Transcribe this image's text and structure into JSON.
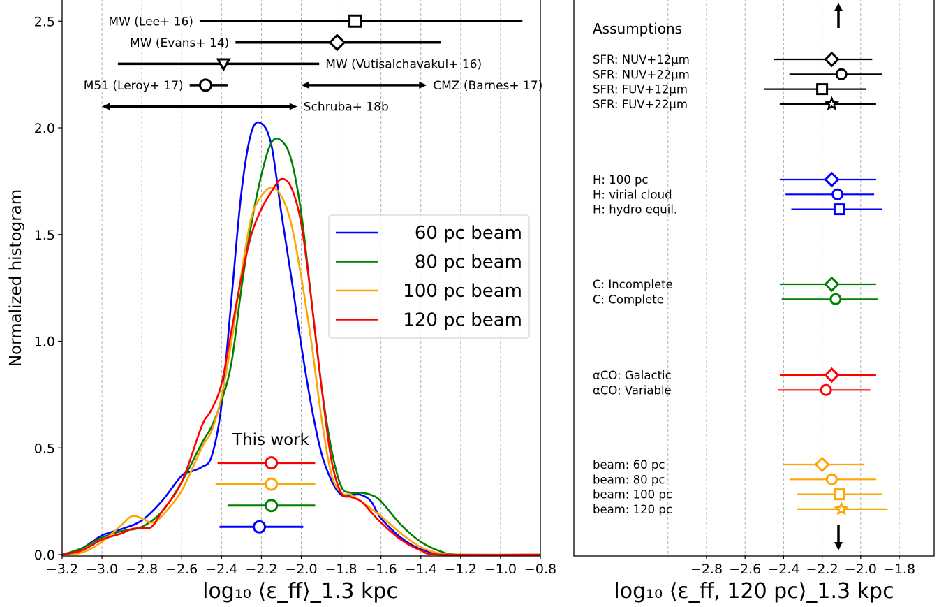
{
  "chart_data": [
    {
      "type": "line",
      "xlabel": "log₁₀ ⟨ε_ff⟩_1.3 kpc",
      "ylabel": "Normalized histogram",
      "xlim": [
        -3.2,
        -0.8
      ],
      "ylim": [
        0.0,
        2.6
      ],
      "grid": "vertical dashed gridlines",
      "xticks": [
        "−3.2",
        "−3.0",
        "−2.8",
        "−2.6",
        "−2.4",
        "−2.2",
        "−2.0",
        "−1.8",
        "−1.6",
        "−1.4",
        "−1.2",
        "−1.0",
        "−0.8"
      ],
      "yticks": [
        "0.0",
        "0.5",
        "1.0",
        "1.5",
        "2.0",
        "2.5"
      ],
      "legend_position": "center-right",
      "series": [
        {
          "name": "60 pc beam",
          "color": "#0000ff",
          "points": [
            [
              -3.2,
              0.0
            ],
            [
              -3.1,
              0.03
            ],
            [
              -3.0,
              0.09
            ],
            [
              -2.9,
              0.12
            ],
            [
              -2.8,
              0.16
            ],
            [
              -2.7,
              0.25
            ],
            [
              -2.6,
              0.37
            ],
            [
              -2.55,
              0.39
            ],
            [
              -2.5,
              0.41
            ],
            [
              -2.45,
              0.46
            ],
            [
              -2.4,
              0.7
            ],
            [
              -2.35,
              1.2
            ],
            [
              -2.3,
              1.7
            ],
            [
              -2.25,
              1.98
            ],
            [
              -2.2,
              2.02
            ],
            [
              -2.15,
              1.92
            ],
            [
              -2.1,
              1.6
            ],
            [
              -2.05,
              1.3
            ],
            [
              -2.0,
              0.98
            ],
            [
              -1.95,
              0.7
            ],
            [
              -1.9,
              0.48
            ],
            [
              -1.85,
              0.35
            ],
            [
              -1.8,
              0.28
            ],
            [
              -1.75,
              0.28
            ],
            [
              -1.7,
              0.28
            ],
            [
              -1.65,
              0.25
            ],
            [
              -1.6,
              0.17
            ],
            [
              -1.5,
              0.08
            ],
            [
              -1.4,
              0.025
            ],
            [
              -1.3,
              0.005
            ],
            [
              -1.2,
              0.0
            ],
            [
              -0.8,
              0.0
            ]
          ]
        },
        {
          "name": "80 pc beam",
          "color": "#008000",
          "points": [
            [
              -3.2,
              0.0
            ],
            [
              -3.1,
              0.03
            ],
            [
              -3.0,
              0.08
            ],
            [
              -2.9,
              0.11
            ],
            [
              -2.8,
              0.13
            ],
            [
              -2.7,
              0.2
            ],
            [
              -2.6,
              0.34
            ],
            [
              -2.5,
              0.52
            ],
            [
              -2.45,
              0.6
            ],
            [
              -2.4,
              0.72
            ],
            [
              -2.35,
              0.9
            ],
            [
              -2.3,
              1.25
            ],
            [
              -2.25,
              1.55
            ],
            [
              -2.2,
              1.78
            ],
            [
              -2.15,
              1.93
            ],
            [
              -2.1,
              1.94
            ],
            [
              -2.05,
              1.85
            ],
            [
              -2.0,
              1.6
            ],
            [
              -1.95,
              1.2
            ],
            [
              -1.9,
              0.8
            ],
            [
              -1.85,
              0.5
            ],
            [
              -1.8,
              0.32
            ],
            [
              -1.75,
              0.29
            ],
            [
              -1.7,
              0.29
            ],
            [
              -1.65,
              0.28
            ],
            [
              -1.6,
              0.25
            ],
            [
              -1.5,
              0.14
            ],
            [
              -1.4,
              0.06
            ],
            [
              -1.3,
              0.015
            ],
            [
              -1.2,
              0.0
            ],
            [
              -0.8,
              0.0
            ]
          ]
        },
        {
          "name": "100 pc beam",
          "color": "#ffa500",
          "points": [
            [
              -3.2,
              0.0
            ],
            [
              -3.1,
              0.01
            ],
            [
              -3.0,
              0.06
            ],
            [
              -2.9,
              0.14
            ],
            [
              -2.85,
              0.18
            ],
            [
              -2.8,
              0.17
            ],
            [
              -2.75,
              0.15
            ],
            [
              -2.7,
              0.18
            ],
            [
              -2.6,
              0.3
            ],
            [
              -2.5,
              0.5
            ],
            [
              -2.45,
              0.58
            ],
            [
              -2.4,
              0.74
            ],
            [
              -2.35,
              1.0
            ],
            [
              -2.3,
              1.32
            ],
            [
              -2.25,
              1.58
            ],
            [
              -2.2,
              1.68
            ],
            [
              -2.15,
              1.72
            ],
            [
              -2.1,
              1.68
            ],
            [
              -2.05,
              1.55
            ],
            [
              -2.0,
              1.3
            ],
            [
              -1.95,
              1.0
            ],
            [
              -1.9,
              0.65
            ],
            [
              -1.85,
              0.38
            ],
            [
              -1.8,
              0.29
            ],
            [
              -1.75,
              0.28
            ],
            [
              -1.7,
              0.25
            ],
            [
              -1.6,
              0.18
            ],
            [
              -1.5,
              0.1
            ],
            [
              -1.4,
              0.035
            ],
            [
              -1.3,
              0.005
            ],
            [
              -1.2,
              0.0
            ],
            [
              -0.8,
              0.0
            ]
          ]
        },
        {
          "name": "120 pc beam",
          "color": "#ff0000",
          "points": [
            [
              -3.2,
              0.0
            ],
            [
              -3.1,
              0.02
            ],
            [
              -3.0,
              0.07
            ],
            [
              -2.9,
              0.1
            ],
            [
              -2.85,
              0.12
            ],
            [
              -2.8,
              0.125
            ],
            [
              -2.75,
              0.13
            ],
            [
              -2.7,
              0.2
            ],
            [
              -2.6,
              0.34
            ],
            [
              -2.5,
              0.6
            ],
            [
              -2.45,
              0.68
            ],
            [
              -2.4,
              0.8
            ],
            [
              -2.35,
              1.05
            ],
            [
              -2.3,
              1.3
            ],
            [
              -2.25,
              1.5
            ],
            [
              -2.2,
              1.62
            ],
            [
              -2.15,
              1.7
            ],
            [
              -2.1,
              1.76
            ],
            [
              -2.05,
              1.72
            ],
            [
              -2.0,
              1.55
            ],
            [
              -1.95,
              1.2
            ],
            [
              -1.9,
              0.8
            ],
            [
              -1.85,
              0.45
            ],
            [
              -1.8,
              0.29
            ],
            [
              -1.75,
              0.27
            ],
            [
              -1.7,
              0.25
            ],
            [
              -1.65,
              0.2
            ],
            [
              -1.6,
              0.15
            ],
            [
              -1.5,
              0.07
            ],
            [
              -1.4,
              0.02
            ],
            [
              -1.3,
              0.0
            ],
            [
              -0.8,
              0.0
            ]
          ]
        }
      ],
      "this_work": {
        "label": "This work",
        "rows": [
          {
            "color": "#ff0000",
            "y": 0.43,
            "center": -2.15,
            "lo": -2.42,
            "hi": -1.93
          },
          {
            "color": "#ffa500",
            "y": 0.33,
            "center": -2.15,
            "lo": -2.43,
            "hi": -1.93
          },
          {
            "color": "#008000",
            "y": 0.23,
            "center": -2.15,
            "lo": -2.37,
            "hi": -1.93
          },
          {
            "color": "#0000ff",
            "y": 0.13,
            "center": -2.21,
            "lo": -2.41,
            "hi": -1.99
          }
        ]
      },
      "literature": [
        {
          "label": "MW (Lee+ 16)",
          "y": 2.5,
          "center": -1.73,
          "lo": -2.51,
          "hi": -0.89,
          "marker": "square",
          "label_side": "left"
        },
        {
          "label": "MW (Evans+ 14)",
          "y": 2.4,
          "center": -1.82,
          "lo": -2.33,
          "hi": -1.3,
          "marker": "diamond",
          "label_side": "left"
        },
        {
          "label": "MW (Vutisalchavakul+ 16)",
          "y": 2.3,
          "center": -2.39,
          "lo": -2.92,
          "hi": -1.91,
          "marker": "triangle-down",
          "label_side": "right"
        },
        {
          "label": "M51 (Leroy+ 17)",
          "y": 2.2,
          "center": -2.48,
          "lo": -2.56,
          "hi": -2.37,
          "marker": "circle",
          "label_side": "left"
        },
        {
          "label": "CMZ (Barnes+ 17)",
          "y": 2.2,
          "lo": -2.0,
          "hi": -1.37,
          "marker": "range",
          "label_side": "right"
        },
        {
          "label": "Schruba+ 18b",
          "y": 2.1,
          "lo": -3.0,
          "hi": -2.02,
          "marker": "range",
          "label_side": "right"
        }
      ]
    },
    {
      "type": "scatter",
      "xlabel": "log₁₀ ⟨ε_ff, 120 pc⟩_1.3 kpc",
      "xlim": [
        -3.2,
        -1.6
      ],
      "xticks": [
        "−2.8",
        "−2.6",
        "−2.4",
        "−2.2",
        "−2.0",
        "−1.8"
      ],
      "grid": "vertical dashed gridlines",
      "title": "Assumptions",
      "groups": [
        {
          "color": "#000000",
          "rows": [
            {
              "label": "SFR: NUV+12μm",
              "center": -2.15,
              "lo": -2.45,
              "hi": -1.94,
              "marker": "diamond"
            },
            {
              "label": "SFR: NUV+22μm",
              "center": -2.1,
              "lo": -2.37,
              "hi": -1.89,
              "marker": "circle"
            },
            {
              "label": "SFR: FUV+12μm",
              "center": -2.2,
              "lo": -2.5,
              "hi": -1.97,
              "marker": "square"
            },
            {
              "label": "SFR: FUV+22μm",
              "center": -2.15,
              "lo": -2.42,
              "hi": -1.92,
              "marker": "star"
            }
          ]
        },
        {
          "color": "#0000ff",
          "rows": [
            {
              "label": "H:  100 pc",
              "center": -2.15,
              "lo": -2.42,
              "hi": -1.92,
              "marker": "diamond"
            },
            {
              "label": "H:  virial cloud",
              "center": -2.12,
              "lo": -2.39,
              "hi": -1.93,
              "marker": "circle"
            },
            {
              "label": "H:  hydro equil.",
              "center": -2.11,
              "lo": -2.36,
              "hi": -1.89,
              "marker": "square"
            }
          ]
        },
        {
          "color": "#008000",
          "rows": [
            {
              "label": "C:  Incomplete",
              "center": -2.15,
              "lo": -2.42,
              "hi": -1.92,
              "marker": "diamond"
            },
            {
              "label": "C:  Complete",
              "center": -2.13,
              "lo": -2.41,
              "hi": -1.91,
              "marker": "circle"
            }
          ]
        },
        {
          "color": "#ff0000",
          "rows": [
            {
              "label": "αCO:  Galactic",
              "center": -2.15,
              "lo": -2.42,
              "hi": -1.92,
              "marker": "diamond"
            },
            {
              "label": "αCO:  Variable",
              "center": -2.18,
              "lo": -2.43,
              "hi": -1.95,
              "marker": "circle"
            }
          ]
        },
        {
          "color": "#ffa500",
          "rows": [
            {
              "label": "beam: 60 pc",
              "center": -2.2,
              "lo": -2.4,
              "hi": -1.98,
              "marker": "diamond"
            },
            {
              "label": "beam: 80 pc",
              "center": -2.15,
              "lo": -2.37,
              "hi": -1.92,
              "marker": "circle"
            },
            {
              "label": "beam: 100 pc",
              "center": -2.11,
              "lo": -2.33,
              "hi": -1.89,
              "marker": "square"
            },
            {
              "label": "beam: 120 pc",
              "center": -2.1,
              "lo": -2.33,
              "hi": -1.86,
              "marker": "star"
            }
          ]
        }
      ]
    }
  ]
}
